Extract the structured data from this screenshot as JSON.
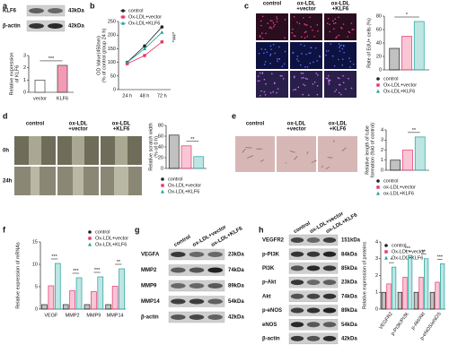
{
  "panel_labels": [
    "a",
    "b",
    "c",
    "d",
    "e",
    "f",
    "g",
    "h"
  ],
  "chart_data": [
    {
      "type": "bar",
      "ylabel": [
        "Relative expression",
        "of KLF6"
      ],
      "categories": [
        "vector",
        "KLF6"
      ],
      "values": [
        1.0,
        2.2
      ],
      "colors": [
        "#ffffff",
        "#f29bb5"
      ],
      "ylim": [
        0,
        3
      ],
      "yticks": [
        0,
        1,
        2,
        3
      ],
      "annotations": [
        "***"
      ]
    },
    {
      "type": "line",
      "ylabel": [
        "OD Value(450nm)",
        "(% of control group 24 h)"
      ],
      "categories": [
        "24 h",
        "48 h",
        "72 h"
      ],
      "series": [
        {
          "name": "control",
          "color": "#222222",
          "values": [
            100,
            160,
            230
          ]
        },
        {
          "name": "Ox-LDL+vector",
          "color": "#e8336b",
          "values": [
            95,
            125,
            175
          ]
        },
        {
          "name": "Ox-LDL+KLF6",
          "color": "#1aa39a",
          "values": [
            100,
            150,
            210
          ]
        }
      ],
      "ylim": [
        0,
        250
      ],
      "yticks": [
        0,
        50,
        100,
        150,
        200,
        250
      ],
      "annotations": [
        "***"
      ]
    },
    {
      "type": "bar",
      "ylabel": [
        "Rate of EdU+ cells (%)"
      ],
      "series": [
        {
          "name": "control",
          "color": "#222222",
          "values": [
            32
          ]
        },
        {
          "name": "Ox-LDL+vector",
          "color": "#e8336b",
          "values": [
            50
          ]
        },
        {
          "name": "Ox-LDL+KLF6",
          "color": "#1aa39a",
          "values": [
            72
          ]
        }
      ],
      "ylim": [
        0,
        80
      ],
      "yticks": [
        0,
        20,
        40,
        60,
        80
      ],
      "annotations": [
        "*"
      ]
    },
    {
      "type": "bar",
      "ylabel": [
        "Relative scratch width",
        "(% of 0 h)"
      ],
      "series": [
        {
          "name": "control",
          "color": "#222222",
          "values": [
            62
          ]
        },
        {
          "name": "Ox-LDL+vector",
          "color": "#e8336b",
          "values": [
            42
          ]
        },
        {
          "name": "Ox-LDL+KLF6",
          "color": "#1aa39a",
          "values": [
            22
          ]
        }
      ],
      "ylim": [
        0,
        80
      ],
      "yticks": [
        0,
        20,
        40,
        60,
        80
      ],
      "annotations": [
        "**"
      ]
    },
    {
      "type": "bar",
      "ylabel": [
        "Relative length of tube",
        "formation (fold of control)"
      ],
      "series": [
        {
          "name": "control",
          "color": "#222222",
          "values": [
            1.0
          ]
        },
        {
          "name": "ox-LDL+vector",
          "color": "#e8336b",
          "values": [
            2.0
          ]
        },
        {
          "name": "ox-LDL+KLF6",
          "color": "#1aa39a",
          "values": [
            3.3
          ]
        }
      ],
      "ylim": [
        0,
        4
      ],
      "yticks": [
        0,
        1,
        2,
        3,
        4
      ],
      "annotations": [
        "**"
      ]
    },
    {
      "type": "bar",
      "ylabel": [
        "Relative expression of mRNAs"
      ],
      "categories": [
        "VEGF",
        "MMP2",
        "MMP9",
        "MMP14"
      ],
      "series": [
        {
          "name": "control",
          "color": "#222222",
          "values": [
            1,
            1,
            1,
            1
          ]
        },
        {
          "name": "Ox-LDL+vector",
          "color": "#e8336b",
          "values": [
            5.2,
            4.1,
            3.9,
            5.1
          ]
        },
        {
          "name": "Ox-LDL+KLF6",
          "color": "#1aa39a",
          "values": [
            10.2,
            7.0,
            7.2,
            9.0
          ]
        }
      ],
      "ylim": [
        0,
        15
      ],
      "yticks": [
        0,
        5,
        10,
        15
      ],
      "annotations": [
        "***",
        "***",
        "***",
        "**"
      ]
    },
    {
      "type": "bar",
      "ylabel": [
        "Relative expression of proteins"
      ],
      "categories": [
        "VEGFR2",
        "p-PI3K/PI3K",
        "p-Akt/Akt",
        "p-eNOS/eNOS"
      ],
      "series": [
        {
          "name": "control",
          "color": "#222222",
          "values": [
            1,
            1,
            1,
            1
          ]
        },
        {
          "name": "Ox-LDL+vector",
          "color": "#e8336b",
          "values": [
            1.5,
            1.9,
            1.9,
            1.6
          ]
        },
        {
          "name": "Ox-LDL+KLF6",
          "color": "#1aa39a",
          "values": [
            2.5,
            3.2,
            3.0,
            2.7
          ]
        }
      ],
      "ylim": [
        0,
        4
      ],
      "yticks": [
        0,
        1,
        2,
        3,
        4
      ],
      "annotations": [
        "*",
        "***",
        "**",
        "***"
      ]
    }
  ],
  "blots": [
    {
      "rows": [
        {
          "label": "KLF6",
          "size": "43kDa"
        },
        {
          "label": "β-actin",
          "size": "42kDa"
        }
      ]
    },
    {
      "lanes": [
        "control",
        "ox-LDL+vector",
        "ox-LDL+KLF6"
      ],
      "rows": [
        {
          "label": "VEGFA",
          "size": "23kDa"
        },
        {
          "label": "MMP2",
          "size": "74kDa"
        },
        {
          "label": "MMP9",
          "size": "89kDa"
        },
        {
          "label": "MMP14",
          "size": "54kDa"
        },
        {
          "label": "β-actin",
          "size": "42kDa"
        }
      ]
    },
    {
      "lanes": [
        "control",
        "ox-LDL+vector",
        "ox-LDL+KLF6"
      ],
      "rows": [
        {
          "label": "VEGFR2",
          "size": "151kDa"
        },
        {
          "label": "p-PI3K",
          "size": "84kDa"
        },
        {
          "label": "PI3K",
          "size": "85kDa"
        },
        {
          "label": "p-Akt",
          "size": "23kDa"
        },
        {
          "label": "Akt",
          "size": "74kDa"
        },
        {
          "label": "p-eNOS",
          "size": "89kDa"
        },
        {
          "label": "eNOS",
          "size": "54kDa"
        },
        {
          "label": "β-actin",
          "size": "42kDa"
        }
      ]
    }
  ],
  "micrographs": [
    {
      "columns": [
        [
          "control"
        ],
        [
          "ox-LDL",
          "+vector"
        ],
        [
          "ox-LDL",
          "+KLF6"
        ]
      ]
    },
    {
      "columns": [
        [
          "control"
        ],
        [
          "ox-LDL",
          "+vector"
        ],
        [
          "ox-LDL",
          "+KLF6"
        ]
      ],
      "rows": [
        "0h",
        "24h"
      ]
    },
    {
      "columns": [
        [
          "control"
        ],
        [
          "ox-LDL",
          "+vector"
        ],
        [
          "ox-LDL",
          "+KLF6"
        ]
      ]
    }
  ]
}
